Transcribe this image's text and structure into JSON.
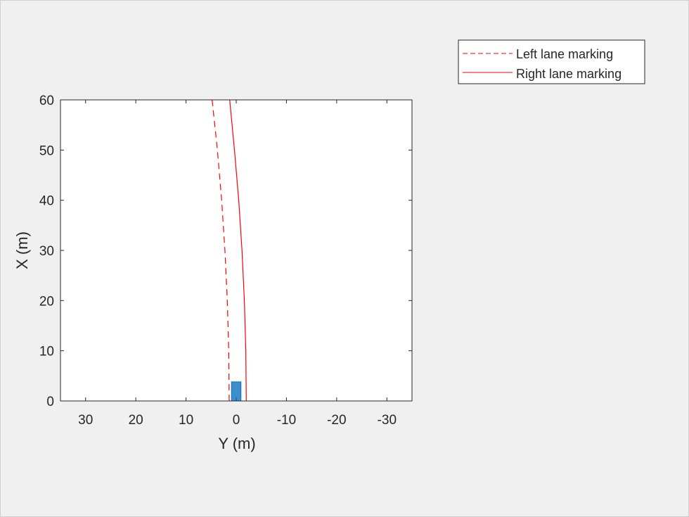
{
  "chart_data": {
    "type": "line",
    "xlabel": "Y (m)",
    "ylabel": "X (m)",
    "xlim": [
      35,
      -35
    ],
    "ylim": [
      0,
      60
    ],
    "x_reversed": true,
    "xticks": [
      30,
      20,
      10,
      0,
      -10,
      -20,
      -30
    ],
    "xtick_labels": [
      "30",
      "20",
      "10",
      "0",
      "-10",
      "-20",
      "-30"
    ],
    "yticks": [
      0,
      10,
      20,
      30,
      40,
      50,
      60
    ],
    "ytick_labels": [
      "0",
      "10",
      "20",
      "30",
      "40",
      "50",
      "60"
    ],
    "grid": false,
    "legend_placement": "outside-top-right",
    "series": [
      {
        "name": "Left lane marking",
        "style": "dashed",
        "color": "#ff0000",
        "x_m": [
          0,
          10,
          20,
          30,
          40,
          50,
          60
        ],
        "y_m": [
          1.4,
          1.49,
          1.78,
          2.25,
          2.9,
          3.75,
          4.8
        ]
      },
      {
        "name": "Right lane marking",
        "style": "solid",
        "color": "#ff0000",
        "x_m": [
          0,
          10,
          20,
          30,
          40,
          50,
          60
        ],
        "y_m": [
          -2.0,
          -1.91,
          -1.62,
          -1.15,
          -0.5,
          0.35,
          1.3
        ]
      }
    ],
    "ego_vehicle": {
      "y_range": [
        -0.94,
        0.94
      ],
      "x_range": [
        0,
        3.8
      ],
      "color": "#0072bd"
    }
  }
}
